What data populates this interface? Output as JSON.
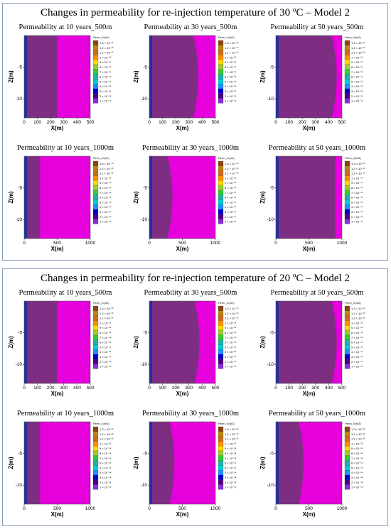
{
  "colors": {
    "dark_purple": "#7d2e82",
    "magenta": "#e600dc",
    "blue_column": "#2030a0",
    "border": "#8a9bb4"
  },
  "sections": [
    {
      "title": "Changes in permeability for re-injection temperature of 30 ºC – Model 2",
      "charts": [
        {
          "title": "Permeability  at 10 years_500m",
          "x_max": 500,
          "x_ticks": [
            0,
            100,
            200,
            300,
            400,
            500
          ],
          "dark_extent": 250,
          "curved_front": false
        },
        {
          "title": "Permeability  at 30 years_500m",
          "x_max": 500,
          "x_ticks": [
            0,
            100,
            200,
            300,
            400,
            500
          ],
          "dark_extent": 370,
          "curved_front": true
        },
        {
          "title": "Permeability  at 50 years_500m",
          "x_max": 500,
          "x_ticks": [
            0,
            100,
            200,
            300,
            400,
            500
          ],
          "dark_extent": 460,
          "curved_front": true
        },
        {
          "title": "Permeability  at 10 years_1000m",
          "x_max": 1000,
          "x_ticks": [
            0,
            500,
            1000
          ],
          "dark_extent": 240,
          "curved_front": false
        },
        {
          "title": "Permeability  at 30 years_1000m",
          "x_max": 1000,
          "x_ticks": [
            0,
            500,
            1000
          ],
          "dark_extent": 350,
          "curved_front": true
        },
        {
          "title": "Permeability  at 50 years_1000m",
          "x_max": 1000,
          "x_ticks": [
            0,
            500,
            1000
          ],
          "dark_extent": 900,
          "curved_front": false
        }
      ]
    },
    {
      "title": "Changes in permeability for re-injection temperature of 20 ºC – Model 2",
      "charts": [
        {
          "title": "Permeability  at 10 years_500m",
          "x_max": 500,
          "x_ticks": [
            0,
            100,
            200,
            300,
            400,
            500
          ],
          "dark_extent": 250,
          "curved_front": false
        },
        {
          "title": "Permeability  at 30 years_500m",
          "x_max": 500,
          "x_ticks": [
            0,
            100,
            200,
            300,
            400,
            500
          ],
          "dark_extent": 380,
          "curved_front": true
        },
        {
          "title": "Permeability  at 50 years_500m",
          "x_max": 500,
          "x_ticks": [
            0,
            100,
            200,
            300,
            400,
            500
          ],
          "dark_extent": 460,
          "curved_front": true
        },
        {
          "title": "Permeability  at 10 years_1000m",
          "x_max": 1000,
          "x_ticks": [
            0,
            500,
            1000
          ],
          "dark_extent": 240,
          "curved_front": false
        },
        {
          "title": "Permeability  at 30 years_1000m",
          "x_max": 1000,
          "x_ticks": [
            0,
            500,
            1000
          ],
          "dark_extent": 380,
          "curved_front": true
        },
        {
          "title": "Permeability  at 50 years_1000m",
          "x_max": 1000,
          "x_ticks": [
            0,
            500,
            1000
          ],
          "dark_extent": 420,
          "curved_front": true
        }
      ]
    }
  ],
  "chart_data": {
    "type": "heatmap",
    "xlabel": "X(m)",
    "ylabel": "Z(m)",
    "y_ticks": [
      -5,
      -10
    ],
    "ylim": [
      -13,
      0
    ],
    "legend": {
      "title": "Perm_X(m2)",
      "entries": [
        "1.3 × 10⁻¹³",
        "1.2 × 10⁻¹³",
        "1.1 × 10⁻¹³",
        "1 × 10⁻¹³",
        "9 × 10⁻¹⁴",
        "8 × 10⁻¹⁴",
        "7 × 10⁻¹⁴",
        "6 × 10⁻¹⁴",
        "5 × 10⁻¹⁴",
        "4 × 10⁻¹⁴",
        "3 × 10⁻¹⁴",
        "2 × 10⁻¹⁴",
        "1 × 10⁻¹⁴"
      ],
      "colors": [
        "#8b4513",
        "#b8860b",
        "#d2691e",
        "#ff8c00",
        "#ffd700",
        "#9acd32",
        "#32cd32",
        "#20b2aa",
        "#00ced1",
        "#1e90ff",
        "#0000cd",
        "#4b0082",
        "#8a2be2"
      ],
      "placement": "right"
    }
  }
}
